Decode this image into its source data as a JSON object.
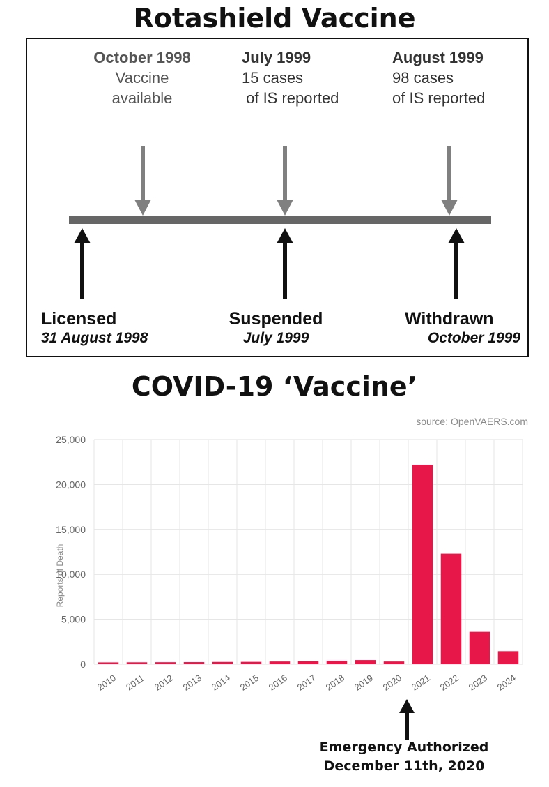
{
  "titles": {
    "top": "Rotashield Vaccine",
    "bottom": "COVID-19 ‘Vaccine’"
  },
  "timeline": {
    "top_events": [
      {
        "title": "October 1998",
        "lines": [
          "Vaccine",
          "available"
        ]
      },
      {
        "title": "July 1999",
        "lines": [
          "15 cases",
          " of IS reported"
        ]
      },
      {
        "title": "August 1999",
        "lines": [
          "98 cases",
          "of IS reported"
        ]
      }
    ],
    "bottom_events": [
      {
        "title": "Licensed",
        "date": "31 August 1998"
      },
      {
        "title": "Suspended",
        "date": "July 1999"
      },
      {
        "title": "Withdrawn",
        "date": "October 1999"
      }
    ]
  },
  "chart_data": {
    "type": "bar",
    "source": "source: OpenVAERS.com",
    "ylabel": "Reports of Death",
    "xlabel": "",
    "ylim": [
      0,
      25000
    ],
    "yticks": [
      "0",
      "5,000",
      "10,000",
      "15,000",
      "20,000",
      "25,000"
    ],
    "ytick_values": [
      0,
      5000,
      10000,
      15000,
      20000,
      25000
    ],
    "categories": [
      "2010",
      "2011",
      "2012",
      "2013",
      "2014",
      "2015",
      "2016",
      "2017",
      "2018",
      "2019",
      "2020",
      "2021",
      "2022",
      "2023",
      "2024"
    ],
    "values": [
      200,
      210,
      220,
      230,
      250,
      260,
      300,
      320,
      380,
      460,
      300,
      22200,
      12300,
      3600,
      1450
    ],
    "bar_color": "#e8174a",
    "grid": true
  },
  "annotation": {
    "line1": "Emergency Authorized",
    "line2": "December 11th, 2020"
  }
}
